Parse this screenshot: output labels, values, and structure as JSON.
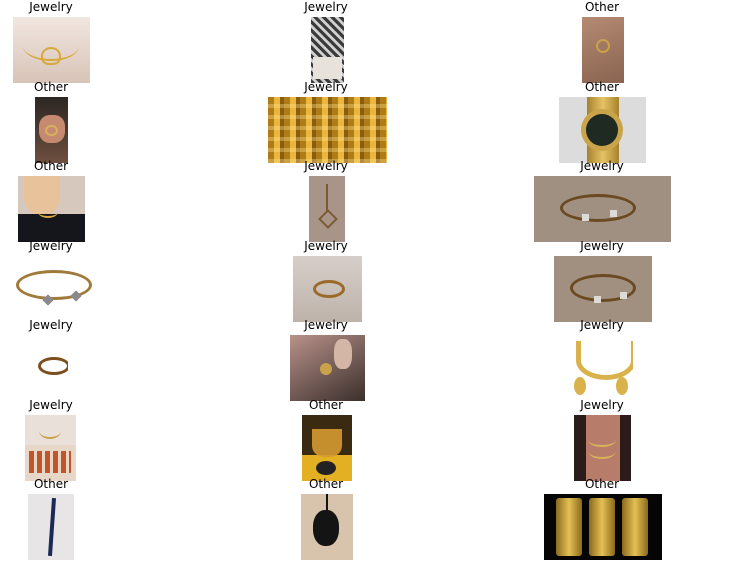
{
  "grid": {
    "rows": [
      {
        "tiles": [
          {
            "label": "Jewelry",
            "subject": "gold heart necklace on skin"
          },
          {
            "label": "Jewelry",
            "subject": "patterned box with jewelry"
          },
          {
            "label": "Other",
            "subject": "hand wearing ring"
          }
        ]
      },
      {
        "tiles": [
          {
            "label": "Other",
            "subject": "hand with ring close-up"
          },
          {
            "label": "Jewelry",
            "subject": "gold bangles display"
          },
          {
            "label": "Other",
            "subject": "gold wristwatch"
          }
        ]
      },
      {
        "tiles": [
          {
            "label": "Other",
            "subject": "woman wearing necklace"
          },
          {
            "label": "Jewelry",
            "subject": "heart pendant on chain"
          },
          {
            "label": "Jewelry",
            "subject": "charm bracelet on table"
          }
        ]
      },
      {
        "tiles": [
          {
            "label": "Jewelry",
            "subject": "charm bracelet cut-out"
          },
          {
            "label": "Jewelry",
            "subject": "gold ring"
          },
          {
            "label": "Jewelry",
            "subject": "charm bracelet"
          }
        ]
      },
      {
        "tiles": [
          {
            "label": "Jewelry",
            "subject": "gold ring cut-out"
          },
          {
            "label": "Jewelry",
            "subject": "hand holding pendant"
          },
          {
            "label": "Jewelry",
            "subject": "gold bridal necklace set"
          }
        ]
      },
      {
        "tiles": [
          {
            "label": "Jewelry",
            "subject": "necklace on printed shirt"
          },
          {
            "label": "Other",
            "subject": "drink glass on sunflower"
          },
          {
            "label": "Jewelry",
            "subject": "layered necklaces on neck"
          }
        ]
      },
      {
        "tiles": [
          {
            "label": "Other",
            "subject": "pen"
          },
          {
            "label": "Other",
            "subject": "computer mouse"
          },
          {
            "label": "Other",
            "subject": "gold phones"
          }
        ]
      }
    ]
  }
}
